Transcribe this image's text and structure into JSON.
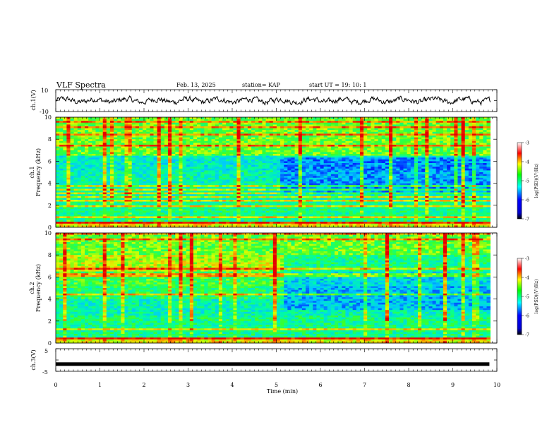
{
  "header": {
    "title": "VLF Spectra",
    "date": "Feb. 13, 2025",
    "station": "station= KAP",
    "start": "start  UT  =   19: 10: 1"
  },
  "colors": {
    "spectrogram_scale": [
      "#000000",
      "#0000ff",
      "#00ffff",
      "#00ff00",
      "#ffff00",
      "#ff0000",
      "#ffffff"
    ],
    "trace": "#000000"
  },
  "chart_data": [
    {
      "type": "line",
      "panel": "ch.1 waveform",
      "ylabel": "ch.1(V)",
      "ylim": [
        -10,
        10
      ],
      "yticks": [
        "10",
        "-10"
      ],
      "xlim": [
        0,
        10
      ],
      "values_note": "noisy trace oscillating roughly between -3 and 3"
    },
    {
      "type": "heatmap",
      "panel": "ch.1 spectrogram",
      "ylabel": "ch.1 Frequency (kHz)",
      "ylim": [
        0,
        10
      ],
      "yticks": [
        "0",
        "2",
        "4",
        "6",
        "8",
        "10"
      ],
      "xlim": [
        0,
        9.85
      ],
      "colorbar": {
        "label": "log(PSD)(V²/Hz)",
        "range": [
          -7,
          -3
        ],
        "ticks": [
          "-3",
          "-4",
          "-5",
          "-6",
          "-7"
        ]
      }
    },
    {
      "type": "heatmap",
      "panel": "ch.2 spectrogram",
      "ylabel": "ch.2 Frequency (kHz)",
      "ylim": [
        0,
        10
      ],
      "yticks": [
        "0",
        "2",
        "4",
        "6",
        "8",
        "10"
      ],
      "xlim": [
        0,
        9.85
      ],
      "colorbar": {
        "label": "log(PSD)(V²/Hz)",
        "range": [
          -7,
          -3
        ],
        "ticks": [
          "-3",
          "-4",
          "-5",
          "-6",
          "-7"
        ]
      }
    },
    {
      "type": "line",
      "panel": "ch.3 waveform",
      "ylabel": "ch.3(V)",
      "ylim": [
        -5,
        5
      ],
      "yticks": [
        "5",
        "0",
        "-5"
      ],
      "xlim": [
        0,
        10
      ],
      "xlabel": "Time (min)",
      "xticks": [
        "0",
        "1",
        "2",
        "3",
        "4",
        "5",
        "6",
        "7",
        "8",
        "9",
        "10"
      ],
      "constant_value": -1.8
    }
  ]
}
